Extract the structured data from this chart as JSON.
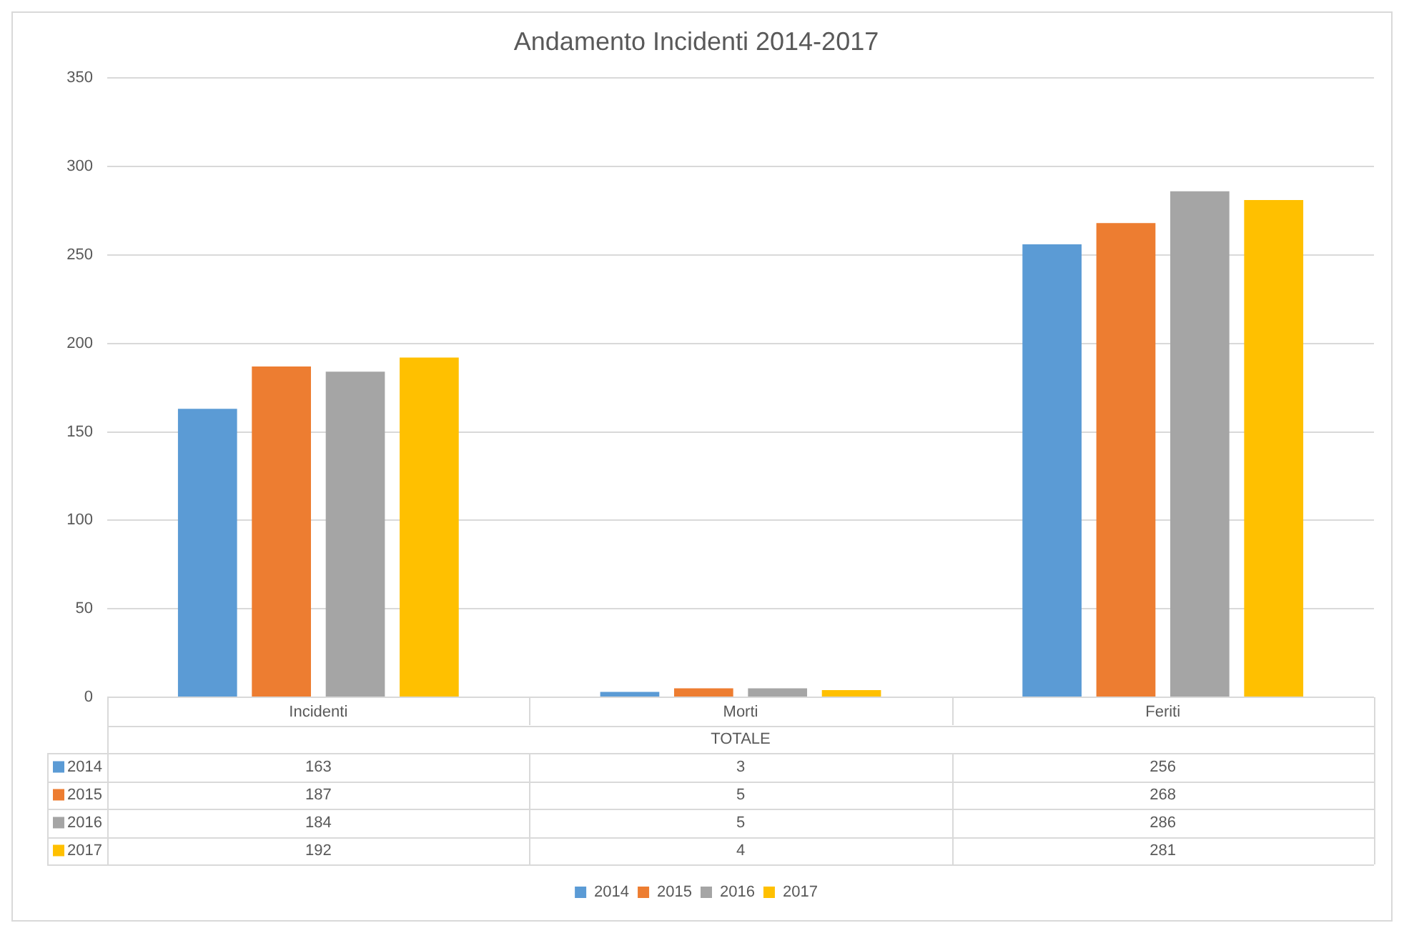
{
  "chart_data": {
    "type": "bar",
    "title": "Andamento Incidenti 2014-2017",
    "xlabel": "TOTALE",
    "categories": [
      "Incidenti",
      "Morti",
      "Feriti"
    ],
    "series": [
      {
        "name": "2014",
        "color": "#5b9bd5",
        "values": [
          163,
          3,
          256
        ]
      },
      {
        "name": "2015",
        "color": "#ed7d31",
        "values": [
          187,
          5,
          268
        ]
      },
      {
        "name": "2016",
        "color": "#a5a5a5",
        "values": [
          184,
          5,
          286
        ]
      },
      {
        "name": "2017",
        "color": "#ffc000",
        "values": [
          192,
          4,
          281
        ]
      }
    ],
    "ylim": [
      0,
      350
    ],
    "yticks": [
      0,
      50,
      100,
      150,
      200,
      250,
      300,
      350
    ],
    "grid": "y",
    "legend": "bottom",
    "data_labels": true
  }
}
